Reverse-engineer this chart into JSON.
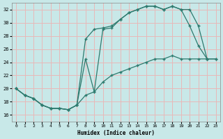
{
  "xlabel": "Humidex (Indice chaleur)",
  "background_color": "#c8e8e8",
  "grid_color": "#e8b8b8",
  "line_color": "#2d7a6e",
  "xlim": [
    -0.5,
    23.5
  ],
  "ylim": [
    15.0,
    33.0
  ],
  "yticks": [
    16,
    18,
    20,
    22,
    24,
    26,
    28,
    30,
    32
  ],
  "xticks": [
    0,
    1,
    2,
    3,
    4,
    5,
    6,
    7,
    8,
    9,
    10,
    11,
    12,
    13,
    14,
    15,
    16,
    17,
    18,
    19,
    20,
    21,
    22,
    23
  ],
  "line_upper_x": [
    0,
    1,
    2,
    3,
    4,
    5,
    6,
    7,
    8,
    9,
    10,
    11,
    12,
    13,
    14,
    15,
    16,
    17,
    18,
    19,
    20,
    21,
    22,
    23
  ],
  "line_upper_y": [
    20.0,
    19.0,
    18.5,
    17.5,
    17.0,
    17.0,
    16.8,
    17.5,
    27.5,
    29.0,
    29.2,
    29.5,
    30.5,
    31.5,
    32.0,
    32.5,
    32.5,
    32.0,
    32.5,
    32.0,
    32.0,
    29.5,
    24.5,
    24.5
  ],
  "line_lower_x": [
    0,
    1,
    2,
    3,
    4,
    5,
    6,
    7,
    8,
    9,
    10,
    11,
    12,
    13,
    14,
    15,
    16,
    17,
    18,
    19,
    20,
    21,
    22,
    23
  ],
  "line_lower_y": [
    20.0,
    19.0,
    18.5,
    17.5,
    17.0,
    17.0,
    16.8,
    17.5,
    24.5,
    19.5,
    29.0,
    29.2,
    30.5,
    31.5,
    32.0,
    32.5,
    32.5,
    32.0,
    32.5,
    32.0,
    29.5,
    26.5,
    24.5,
    null
  ],
  "line_diag_x": [
    0,
    1,
    2,
    3,
    4,
    5,
    6,
    7,
    8,
    9,
    10,
    11,
    12,
    13,
    14,
    15,
    16,
    17,
    18,
    19,
    20,
    21,
    22,
    23
  ],
  "line_diag_y": [
    20.0,
    19.0,
    18.5,
    17.5,
    17.0,
    17.0,
    16.8,
    17.5,
    19.0,
    19.5,
    21.0,
    22.0,
    22.5,
    23.0,
    23.5,
    24.0,
    24.5,
    24.5,
    25.0,
    24.5,
    24.5,
    24.5,
    24.5,
    24.5
  ]
}
